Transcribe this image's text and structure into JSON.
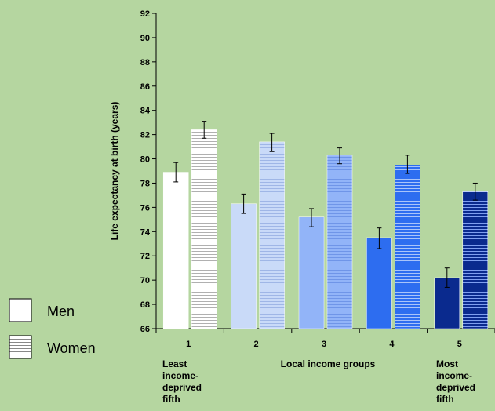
{
  "chart_data": {
    "type": "bar",
    "title": "",
    "ylabel": "Life expectancy at birth (years)",
    "xlabel": "Local income groups",
    "ylim": [
      66,
      92
    ],
    "yticks": [
      66,
      68,
      70,
      72,
      74,
      76,
      78,
      80,
      82,
      84,
      86,
      88,
      90,
      92
    ],
    "categories": [
      "1",
      "2",
      "3",
      "4",
      "5"
    ],
    "category_notes": {
      "first": [
        "Least",
        "income-",
        "deprived",
        "fifth"
      ],
      "last": [
        "Most",
        "income-",
        "deprived",
        "fifth"
      ]
    },
    "series": [
      {
        "name": "Men",
        "values": [
          78.9,
          76.3,
          75.2,
          73.5,
          70.2
        ],
        "error_low": [
          78.1,
          75.5,
          74.4,
          72.6,
          69.4
        ],
        "error_high": [
          79.7,
          77.1,
          75.9,
          74.3,
          71.0
        ]
      },
      {
        "name": "Women",
        "values": [
          82.4,
          81.4,
          80.3,
          79.5,
          77.3
        ],
        "error_low": [
          81.7,
          80.6,
          79.6,
          78.8,
          76.6
        ],
        "error_high": [
          83.1,
          82.1,
          80.9,
          80.3,
          78.0
        ]
      }
    ],
    "colors": {
      "men": [
        "#ffffff",
        "#c9daf8",
        "#92b4f8",
        "#2d6df0",
        "#0a2a8e"
      ],
      "women": [
        "#ffffff",
        "#c9daf8",
        "#92b4f8",
        "#2d6df0",
        "#0a2a8e"
      ],
      "women_stripe": [
        "#b0b0b0",
        "#9fb6e6",
        "#6f95e8",
        "#a9c4fa",
        "#7f9ff0"
      ]
    },
    "legend": {
      "placement": "left",
      "entries": [
        "Men",
        "Women"
      ]
    },
    "grid": false
  }
}
